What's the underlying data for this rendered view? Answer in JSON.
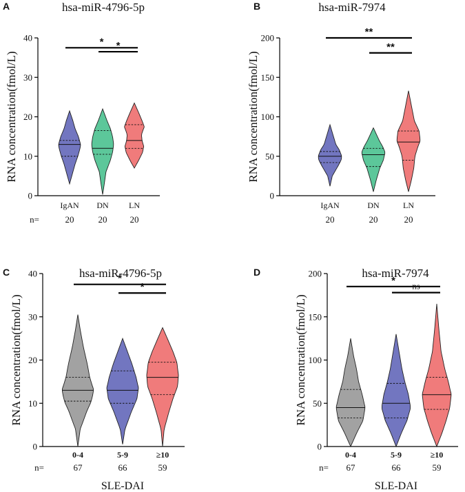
{
  "chart_data": [
    {
      "panel": "A",
      "type": "violin",
      "title": "hsa-miR-4796-5p",
      "ylabel": "RNA concentration(fmol/L)",
      "xlabel": "",
      "ylim": [
        0,
        40
      ],
      "yticks": [
        0,
        10,
        20,
        30,
        40
      ],
      "categories": [
        "IgAN",
        "DN",
        "LN"
      ],
      "n_prefix": "n=",
      "n": [
        "20",
        "20",
        "20"
      ],
      "colors": [
        "#7276c0",
        "#5cc79a",
        "#f07b7b"
      ],
      "violins": [
        {
          "min": 3,
          "max": 21.5,
          "q1": 10,
          "median": 13,
          "q3": 14,
          "profile": [
            [
              3,
              0.0
            ],
            [
              5,
              0.2
            ],
            [
              8,
              0.5
            ],
            [
              10,
              0.75
            ],
            [
              12,
              0.95
            ],
            [
              13,
              1.0
            ],
            [
              15,
              0.8
            ],
            [
              17,
              0.5
            ],
            [
              19,
              0.3
            ],
            [
              21.5,
              0.0
            ]
          ]
        },
        {
          "min": 0.3,
          "max": 22,
          "q1": 10.5,
          "median": 12,
          "q3": 16.5,
          "profile": [
            [
              0.3,
              0.0
            ],
            [
              3,
              0.15
            ],
            [
              6,
              0.3
            ],
            [
              9,
              0.7
            ],
            [
              11,
              0.9
            ],
            [
              13,
              1.0
            ],
            [
              15,
              0.9
            ],
            [
              17,
              0.7
            ],
            [
              19,
              0.4
            ],
            [
              22,
              0.0
            ]
          ]
        },
        {
          "min": 7,
          "max": 23.5,
          "q1": 12,
          "median": 14,
          "q3": 18,
          "profile": [
            [
              7,
              0.0
            ],
            [
              9,
              0.4
            ],
            [
              11,
              0.75
            ],
            [
              12.5,
              0.85
            ],
            [
              14,
              0.7
            ],
            [
              15.5,
              0.65
            ],
            [
              17.5,
              0.9
            ],
            [
              19,
              0.7
            ],
            [
              21,
              0.4
            ],
            [
              23.5,
              0.0
            ]
          ]
        }
      ],
      "significance": [
        {
          "from": 0,
          "to": 2,
          "y": 37.5,
          "label": "*"
        },
        {
          "from": 1,
          "to": 2,
          "y": 36.5,
          "label": "*"
        }
      ]
    },
    {
      "panel": "B",
      "type": "violin",
      "title": "hsa-miR-7974",
      "ylabel": "RNA concentration(fmol/L)",
      "xlabel": "",
      "ylim": [
        0,
        200
      ],
      "yticks": [
        0,
        50,
        100,
        150,
        200
      ],
      "categories": [
        "IgAN",
        "DN",
        "LN"
      ],
      "n_prefix": "n=",
      "n": [
        "20",
        "20",
        "20"
      ],
      "colors": [
        "#7276c0",
        "#5cc79a",
        "#f07b7b"
      ],
      "violins": [
        {
          "min": 12,
          "max": 90,
          "q1": 42,
          "median": 50,
          "q3": 56,
          "profile": [
            [
              12,
              0.0
            ],
            [
              25,
              0.2
            ],
            [
              38,
              0.7
            ],
            [
              45,
              0.95
            ],
            [
              50,
              1.0
            ],
            [
              58,
              0.8
            ],
            [
              65,
              0.5
            ],
            [
              75,
              0.3
            ],
            [
              90,
              0.0
            ]
          ]
        },
        {
          "min": 5,
          "max": 86,
          "q1": 37,
          "median": 52,
          "q3": 60,
          "profile": [
            [
              5,
              0.0
            ],
            [
              20,
              0.25
            ],
            [
              35,
              0.55
            ],
            [
              45,
              0.85
            ],
            [
              55,
              1.0
            ],
            [
              62,
              0.8
            ],
            [
              70,
              0.5
            ],
            [
              86,
              0.0
            ]
          ]
        },
        {
          "min": 5,
          "max": 133,
          "q1": 45,
          "median": 68,
          "q3": 82,
          "profile": [
            [
              5,
              0.0
            ],
            [
              20,
              0.25
            ],
            [
              35,
              0.45
            ],
            [
              50,
              0.55
            ],
            [
              62,
              0.8
            ],
            [
              70,
              1.0
            ],
            [
              82,
              0.9
            ],
            [
              95,
              0.5
            ],
            [
              110,
              0.3
            ],
            [
              133,
              0.0
            ]
          ]
        }
      ],
      "significance": [
        {
          "from": 0,
          "to": 2,
          "y": 200,
          "label": "**"
        },
        {
          "from": 1,
          "to": 2,
          "y": 181,
          "label": "**"
        }
      ]
    },
    {
      "panel": "C",
      "type": "violin",
      "title": "hsa-miR-4796-5p",
      "ylabel": "RNA concentration(fmol/L)",
      "xlabel": "SLE-DAI",
      "ylim": [
        0,
        40
      ],
      "yticks": [
        0,
        10,
        20,
        30,
        40
      ],
      "categories": [
        "0-4",
        "5-9",
        "≥10"
      ],
      "n_prefix": "n=",
      "n": [
        "67",
        "66",
        "59"
      ],
      "colors": [
        "#a2a2a2",
        "#7276c0",
        "#f07b7b"
      ],
      "violins": [
        {
          "min": 0,
          "max": 30.5,
          "q1": 10.5,
          "median": 13,
          "q3": 16,
          "profile": [
            [
              0,
              0.0
            ],
            [
              4,
              0.15
            ],
            [
              8,
              0.55
            ],
            [
              10.5,
              0.85
            ],
            [
              13,
              1.0
            ],
            [
              16,
              0.75
            ],
            [
              19,
              0.6
            ],
            [
              23,
              0.35
            ],
            [
              27,
              0.15
            ],
            [
              30.5,
              0.0
            ]
          ]
        },
        {
          "min": 0.5,
          "max": 25,
          "q1": 10,
          "median": 13,
          "q3": 17.5,
          "profile": [
            [
              0.5,
              0.0
            ],
            [
              4,
              0.15
            ],
            [
              8,
              0.55
            ],
            [
              11,
              0.9
            ],
            [
              13.5,
              1.0
            ],
            [
              16,
              0.85
            ],
            [
              19,
              0.6
            ],
            [
              22,
              0.3
            ],
            [
              25,
              0.0
            ]
          ]
        },
        {
          "min": 0,
          "max": 27.5,
          "q1": 12,
          "median": 16,
          "q3": 19.5,
          "profile": [
            [
              0,
              0.0
            ],
            [
              4,
              0.1
            ],
            [
              8,
              0.4
            ],
            [
              11,
              0.65
            ],
            [
              14,
              0.95
            ],
            [
              16.5,
              1.0
            ],
            [
              19.5,
              0.9
            ],
            [
              22,
              0.65
            ],
            [
              25,
              0.3
            ],
            [
              27.5,
              0.0
            ]
          ]
        }
      ],
      "significance": [
        {
          "from": 0,
          "to": 2,
          "y": 37.5,
          "label": "*"
        },
        {
          "from": 1,
          "to": 2,
          "y": 35.5,
          "label": "*"
        }
      ]
    },
    {
      "panel": "D",
      "type": "violin",
      "title": "hsa-miR-7974",
      "ylabel": "RNA concentration(fmol/L)",
      "xlabel": "SLE-DAI",
      "ylim": [
        0,
        200
      ],
      "yticks": [
        0,
        50,
        100,
        150,
        200
      ],
      "categories": [
        "0-4",
        "5-9",
        "≥10"
      ],
      "n_prefix": "n=",
      "n": [
        "67",
        "66",
        "59"
      ],
      "colors": [
        "#a2a2a2",
        "#7276c0",
        "#f07b7b"
      ],
      "violins": [
        {
          "min": 0,
          "max": 125,
          "q1": 33,
          "median": 45,
          "q3": 66,
          "profile": [
            [
              0,
              0.0
            ],
            [
              15,
              0.4
            ],
            [
              30,
              0.85
            ],
            [
              45,
              1.0
            ],
            [
              60,
              0.8
            ],
            [
              75,
              0.55
            ],
            [
              90,
              0.4
            ],
            [
              105,
              0.2
            ],
            [
              125,
              0.0
            ]
          ]
        },
        {
          "min": 0,
          "max": 130,
          "q1": 33,
          "median": 50,
          "q3": 73,
          "profile": [
            [
              0,
              0.0
            ],
            [
              15,
              0.35
            ],
            [
              30,
              0.75
            ],
            [
              45,
              1.0
            ],
            [
              60,
              0.85
            ],
            [
              75,
              0.6
            ],
            [
              90,
              0.4
            ],
            [
              110,
              0.2
            ],
            [
              130,
              0.0
            ]
          ]
        },
        {
          "min": 0,
          "max": 165,
          "q1": 43,
          "median": 60,
          "q3": 80,
          "profile": [
            [
              0,
              0.0
            ],
            [
              15,
              0.35
            ],
            [
              30,
              0.65
            ],
            [
              45,
              0.9
            ],
            [
              60,
              1.0
            ],
            [
              75,
              0.8
            ],
            [
              90,
              0.55
            ],
            [
              110,
              0.3
            ],
            [
              135,
              0.15
            ],
            [
              165,
              0.0
            ]
          ]
        }
      ],
      "significance": [
        {
          "from": 0,
          "to": 2,
          "y": 185,
          "label": "*"
        },
        {
          "from": 1,
          "to": 2,
          "y": 178,
          "label": "ns"
        }
      ]
    }
  ]
}
